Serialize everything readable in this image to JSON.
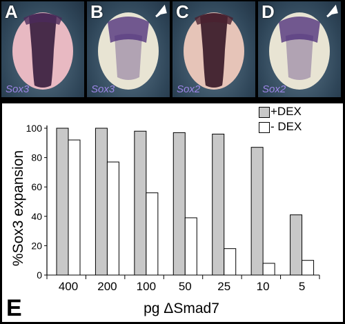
{
  "panels": [
    {
      "letter": "A",
      "gene": "Sox3",
      "arrow": false
    },
    {
      "letter": "B",
      "gene": "Sox3",
      "arrow": true
    },
    {
      "letter": "C",
      "gene": "Sox2",
      "arrow": false
    },
    {
      "letter": "D",
      "gene": "Sox2",
      "arrow": true
    }
  ],
  "panel_e_label": "E",
  "colors": {
    "plus_dex": "#c8c8c8",
    "minus_dex": "#ffffff",
    "stain": "#4a2a78"
  },
  "chart_data": {
    "type": "bar",
    "title": "",
    "xlabel": "pg ΔSmad7",
    "ylabel": "%Sox3 expansion",
    "ylim": [
      0,
      100
    ],
    "yticks": [
      0,
      20,
      40,
      60,
      80,
      100
    ],
    "grid": false,
    "legend_position": "top-right",
    "categories": [
      "400",
      "200",
      "100",
      "50",
      "25",
      "10",
      "5"
    ],
    "series": [
      {
        "name": "+DEX",
        "values": [
          100,
          100,
          98,
          97,
          96,
          87,
          41
        ]
      },
      {
        "name": "- DEX",
        "values": [
          92,
          77,
          56,
          39,
          18,
          8,
          10
        ]
      }
    ]
  }
}
